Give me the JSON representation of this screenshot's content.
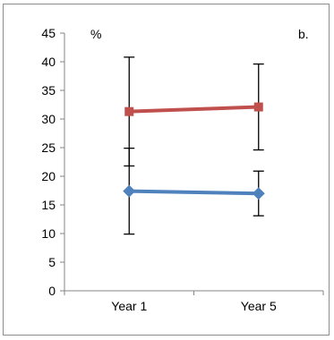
{
  "chart_data": {
    "type": "line",
    "title": "",
    "ylabel": "%",
    "panel_label": "b.",
    "xlabel": "",
    "categories": [
      "Year 1",
      "Year 5"
    ],
    "ylim": [
      0,
      45
    ],
    "yticks": [
      0,
      5,
      10,
      15,
      20,
      25,
      30,
      35,
      40,
      45
    ],
    "grid": false,
    "legend": "none",
    "series": [
      {
        "values": [
          31.3,
          32.1
        ],
        "error_low": [
          21.8,
          24.6
        ],
        "error_high": [
          40.8,
          39.6
        ],
        "color": "#c0504d",
        "marker": "square"
      },
      {
        "values": [
          17.4,
          17.0
        ],
        "error_low": [
          9.9,
          13.1
        ],
        "error_high": [
          24.9,
          20.9
        ],
        "color": "#4f81bd",
        "marker": "diamond"
      }
    ]
  }
}
